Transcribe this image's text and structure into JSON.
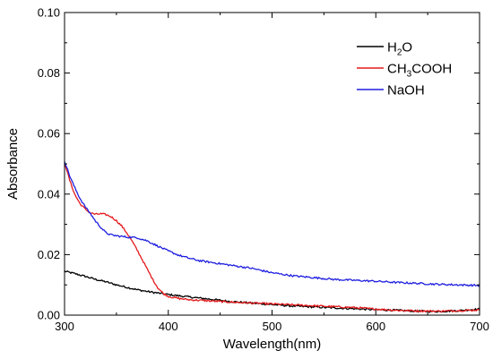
{
  "chart_data": {
    "type": "line",
    "xlabel": "Wavelength(nm)",
    "ylabel": "Absorbance",
    "xlim": [
      300,
      700
    ],
    "ylim": [
      0,
      0.1
    ],
    "x_ticks": [
      300,
      400,
      500,
      600,
      700
    ],
    "y_ticks": [
      0.0,
      0.02,
      0.04,
      0.06,
      0.08,
      0.1
    ],
    "x_tick_labels": [
      "300",
      "400",
      "500",
      "600",
      "700"
    ],
    "y_tick_labels": [
      "0.00",
      "0.02",
      "0.04",
      "0.06",
      "0.08",
      "0.10"
    ],
    "grid": false,
    "legend_position": "top-right",
    "series": [
      {
        "name": "H2O",
        "legend": {
          "parts": [
            {
              "t": "H"
            },
            {
              "t": "2",
              "sub": true
            },
            {
              "t": "O"
            }
          ]
        },
        "color": "#000000",
        "x": [
          300,
          310,
          320,
          330,
          340,
          350,
          360,
          370,
          380,
          390,
          400,
          420,
          440,
          460,
          480,
          500,
          520,
          540,
          560,
          580,
          600,
          620,
          640,
          660,
          680,
          700
        ],
        "y": [
          0.0145,
          0.0137,
          0.0128,
          0.0118,
          0.011,
          0.01,
          0.0092,
          0.0084,
          0.0078,
          0.0073,
          0.0068,
          0.006,
          0.0053,
          0.0045,
          0.004,
          0.0035,
          0.003,
          0.0027,
          0.0024,
          0.0021,
          0.0018,
          0.0016,
          0.0013,
          0.0012,
          0.0015,
          0.002
        ]
      },
      {
        "name": "CH3COOH",
        "legend": {
          "parts": [
            {
              "t": "CH"
            },
            {
              "t": "3",
              "sub": true
            },
            {
              "t": "COOH"
            }
          ]
        },
        "color": "#e41a1c",
        "x": [
          300,
          305,
          310,
          315,
          320,
          325,
          330,
          335,
          340,
          345,
          350,
          355,
          360,
          365,
          370,
          375,
          380,
          385,
          390,
          395,
          400,
          410,
          420,
          440,
          460,
          480,
          500,
          520,
          540,
          560,
          580,
          600,
          620,
          640,
          660,
          680,
          700
        ],
        "y": [
          0.0505,
          0.0445,
          0.0398,
          0.0368,
          0.035,
          0.0338,
          0.0333,
          0.0335,
          0.0332,
          0.0325,
          0.0312,
          0.0295,
          0.0272,
          0.0245,
          0.0215,
          0.0183,
          0.015,
          0.0118,
          0.009,
          0.0072,
          0.0062,
          0.0055,
          0.0051,
          0.0047,
          0.0043,
          0.004,
          0.0037,
          0.0034,
          0.0031,
          0.0028,
          0.0025,
          0.002,
          0.0016,
          0.0014,
          0.0013,
          0.0015,
          0.0017
        ]
      },
      {
        "name": "NaOH",
        "legend": {
          "parts": [
            {
              "t": "NaOH"
            }
          ]
        },
        "color": "#1f1fe0",
        "x": [
          300,
          305,
          310,
          315,
          320,
          325,
          330,
          335,
          340,
          345,
          350,
          360,
          370,
          380,
          390,
          400,
          410,
          420,
          430,
          440,
          460,
          480,
          500,
          520,
          540,
          560,
          580,
          600,
          620,
          640,
          660,
          680,
          700
        ],
        "y": [
          0.051,
          0.046,
          0.042,
          0.0385,
          0.0358,
          0.0335,
          0.031,
          0.029,
          0.0272,
          0.0265,
          0.0262,
          0.0258,
          0.0256,
          0.0245,
          0.0228,
          0.0212,
          0.0198,
          0.0188,
          0.018,
          0.0175,
          0.0165,
          0.0155,
          0.014,
          0.013,
          0.0124,
          0.0118,
          0.0115,
          0.0112,
          0.0108,
          0.0105,
          0.0102,
          0.01,
          0.0098
        ]
      }
    ]
  }
}
